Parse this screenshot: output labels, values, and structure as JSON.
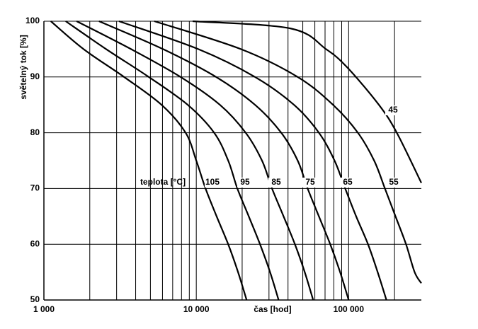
{
  "chart_data": {
    "type": "line",
    "xlabel": "čas [hod]",
    "ylabel": "světelný tok [%]",
    "annotation": "teplota [°C]",
    "log_x": true,
    "grid": true,
    "color": "#000000",
    "xlim": [
      1000,
      300000
    ],
    "ylim": [
      50,
      100
    ],
    "xticks": [
      {
        "value": 1000,
        "label": "1 000"
      },
      {
        "value": 10000,
        "label": "10 000"
      },
      {
        "value": 100000,
        "label": "100 000"
      }
    ],
    "xminor": [
      2000,
      3000,
      4000,
      5000,
      6000,
      7000,
      8000,
      9000,
      20000,
      30000,
      40000,
      50000,
      60000,
      70000,
      80000,
      90000,
      200000
    ],
    "yticks": [
      50,
      60,
      70,
      80,
      90,
      100
    ],
    "series": [
      {
        "name": "105",
        "x": [
          1110,
          1820,
          3360,
          5920,
          8510,
          10000,
          11500,
          13600,
          16200,
          18800,
          21400
        ],
        "values": [
          100,
          95,
          90,
          85,
          80,
          75,
          70,
          65,
          60,
          55,
          50
        ]
      },
      {
        "name": "95",
        "x": [
          1390,
          2560,
          4880,
          8790,
          13100,
          16200,
          18600,
          22100,
          26200,
          30500,
          34700
        ],
        "values": [
          100,
          95,
          90,
          85,
          80,
          75,
          70,
          65,
          60,
          55,
          50
        ]
      },
      {
        "name": "85",
        "x": [
          1640,
          3730,
          7890,
          14300,
          21100,
          27000,
          31400,
          37400,
          44400,
          51500,
          58500
        ],
        "values": [
          100,
          95,
          90,
          85,
          80,
          75,
          70,
          65,
          60,
          55,
          50
        ]
      },
      {
        "name": "75",
        "x": [
          2300,
          6050,
          13500,
          24300,
          36100,
          46300,
          53800,
          63800,
          75700,
          87900,
          100000
        ],
        "values": [
          100,
          95,
          90,
          85,
          80,
          75,
          70,
          65,
          60,
          55,
          50
        ]
      },
      {
        "name": "65",
        "x": [
          3110,
          10300,
          24300,
          43800,
          63800,
          80800,
          94900,
          112000,
          134000,
          155000,
          177000
        ],
        "values": [
          100,
          95,
          90,
          85,
          80,
          75,
          70,
          65,
          60,
          55,
          50
        ]
      },
      {
        "name": "55",
        "x": [
          5310,
          19600,
          46300,
          79000,
          115000,
          147000,
          173000,
          203000,
          238000,
          271000,
          300000
        ],
        "values": [
          100,
          95,
          90,
          85,
          80,
          75,
          70,
          65,
          60,
          55,
          53
        ]
      },
      {
        "name": "45",
        "x": [
          9470,
          41600,
          71000,
          98000,
          158000,
          207000,
          300000
        ],
        "values": [
          100,
          98.7,
          95,
          91.7,
          85,
          80,
          71
        ]
      }
    ]
  }
}
